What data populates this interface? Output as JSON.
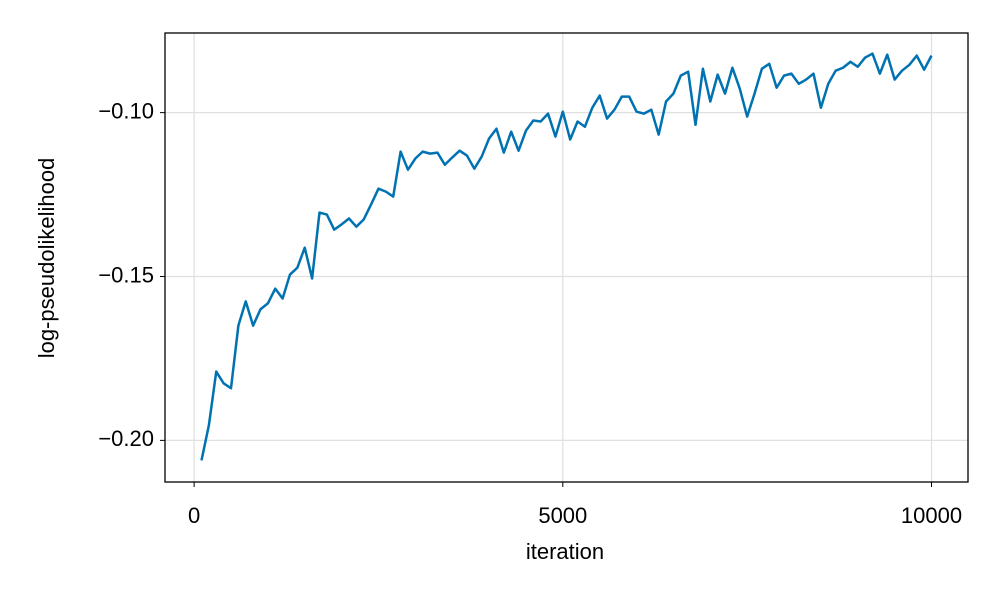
{
  "chart_data": {
    "type": "line",
    "x_label": "iteration",
    "y_label": "log-pseudolikelihood",
    "x": [
      100,
      200,
      300,
      400,
      500,
      600,
      700,
      800,
      900,
      1000,
      1100,
      1200,
      1300,
      1400,
      1500,
      1600,
      1700,
      1800,
      1900,
      2000,
      2100,
      2200,
      2300,
      2400,
      2500,
      2600,
      2700,
      2800,
      2900,
      3000,
      3100,
      3200,
      3300,
      3400,
      3500,
      3600,
      3700,
      3800,
      3900,
      4000,
      4100,
      4200,
      4300,
      4400,
      4500,
      4600,
      4700,
      4800,
      4900,
      5000,
      5100,
      5200,
      5300,
      5400,
      5500,
      5600,
      5700,
      5800,
      5900,
      6000,
      6100,
      6200,
      6300,
      6400,
      6500,
      6600,
      6700,
      6800,
      6900,
      7000,
      7100,
      7200,
      7300,
      7400,
      7500,
      7600,
      7700,
      7800,
      7900,
      8000,
      8100,
      8200,
      8300,
      8400,
      8500,
      8600,
      8700,
      8800,
      8900,
      9000,
      9100,
      9200,
      9300,
      9400,
      9500,
      9600,
      9700,
      9800,
      9900,
      10000
    ],
    "series": [
      {
        "color": "#0072b2",
        "values": [
          -0.2061,
          -0.1954,
          -0.179,
          -0.1826,
          -0.1841,
          -0.165,
          -0.1576,
          -0.165,
          -0.16,
          -0.1582,
          -0.1537,
          -0.1567,
          -0.1494,
          -0.1473,
          -0.1412,
          -0.1506,
          -0.1305,
          -0.1311,
          -0.1357,
          -0.1341,
          -0.1323,
          -0.1348,
          -0.1326,
          -0.128,
          -0.1232,
          -0.1241,
          -0.1256,
          -0.1119,
          -0.1174,
          -0.114,
          -0.1119,
          -0.1125,
          -0.1122,
          -0.1159,
          -0.1137,
          -0.1116,
          -0.1131,
          -0.1171,
          -0.1134,
          -0.1079,
          -0.1049,
          -0.1122,
          -0.1058,
          -0.1116,
          -0.1055,
          -0.1024,
          -0.1027,
          -0.1003,
          -0.1073,
          -0.0997,
          -0.1082,
          -0.1027,
          -0.1043,
          -0.0985,
          -0.0948,
          -0.1018,
          -0.0991,
          -0.0951,
          -0.0951,
          -0.0997,
          -0.1003,
          -0.0991,
          -0.1067,
          -0.0966,
          -0.0942,
          -0.0887,
          -0.0875,
          -0.1037,
          -0.0866,
          -0.0966,
          -0.0884,
          -0.0942,
          -0.0863,
          -0.0927,
          -0.1012,
          -0.0942,
          -0.0866,
          -0.0851,
          -0.0924,
          -0.0887,
          -0.0881,
          -0.0912,
          -0.0899,
          -0.0881,
          -0.0985,
          -0.0912,
          -0.0872,
          -0.0863,
          -0.0845,
          -0.086,
          -0.0832,
          -0.082,
          -0.0881,
          -0.0823,
          -0.0899,
          -0.0872,
          -0.0854,
          -0.0826,
          -0.0869,
          -0.0826
        ]
      }
    ],
    "xlim": [
      -395,
      10495
    ],
    "xticks": [
      0,
      5000,
      10000
    ],
    "ylim": [
      -0.2127,
      -0.0757
    ],
    "yticks": [
      {
        "value": -0.2,
        "label": "−0.20"
      },
      {
        "value": -0.15,
        "label": "−0.15"
      },
      {
        "value": -0.1,
        "label": "−0.10"
      }
    ],
    "grid": true
  }
}
